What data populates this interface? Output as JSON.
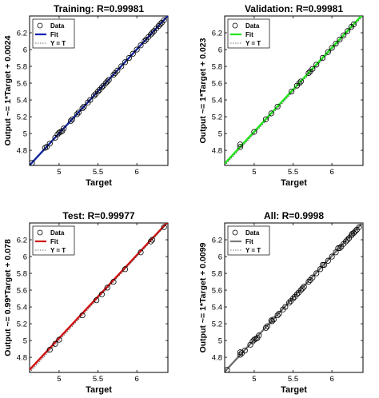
{
  "figure": {
    "background": "#ffffff"
  },
  "chart_data": [
    {
      "type": "scatter",
      "title": "Training: R=0.99981",
      "xlabel": "Target",
      "ylabel": "Output ~= 1*Target + 0.0024",
      "xlim": [
        4.62,
        6.4
      ],
      "ylim": [
        4.62,
        6.4
      ],
      "xticks": [
        "5",
        "5.5",
        "6"
      ],
      "yticks": [
        "4.8",
        "5",
        "5.2",
        "5.4",
        "5.6",
        "5.8",
        "6",
        "6.2"
      ],
      "fit_color": "#0a1fb0",
      "fit": {
        "slope": 1.0,
        "intercept": 0.0024
      },
      "legend": {
        "placement": "top-left",
        "entries": [
          "Data",
          "Fit",
          "Y = T"
        ]
      },
      "points": [
        [
          4.65,
          4.65
        ],
        [
          4.82,
          4.83
        ],
        [
          4.84,
          4.84
        ],
        [
          4.88,
          4.88
        ],
        [
          4.95,
          4.95
        ],
        [
          4.98,
          4.99
        ],
        [
          5.0,
          5.01
        ],
        [
          5.02,
          5.02
        ],
        [
          5.04,
          5.03
        ],
        [
          5.06,
          5.06
        ],
        [
          5.15,
          5.15
        ],
        [
          5.17,
          5.17
        ],
        [
          5.23,
          5.23
        ],
        [
          5.25,
          5.25
        ],
        [
          5.3,
          5.3
        ],
        [
          5.32,
          5.32
        ],
        [
          5.37,
          5.37
        ],
        [
          5.4,
          5.4
        ],
        [
          5.45,
          5.45
        ],
        [
          5.47,
          5.47
        ],
        [
          5.5,
          5.5
        ],
        [
          5.52,
          5.52
        ],
        [
          5.55,
          5.55
        ],
        [
          5.57,
          5.57
        ],
        [
          5.6,
          5.6
        ],
        [
          5.62,
          5.62
        ],
        [
          5.64,
          5.64
        ],
        [
          5.7,
          5.7
        ],
        [
          5.72,
          5.72
        ],
        [
          5.75,
          5.75
        ],
        [
          5.8,
          5.8
        ],
        [
          5.85,
          5.85
        ],
        [
          5.9,
          5.9
        ],
        [
          5.95,
          5.95
        ],
        [
          6.0,
          6.0
        ],
        [
          6.05,
          6.05
        ],
        [
          6.1,
          6.1
        ],
        [
          6.12,
          6.12
        ],
        [
          6.15,
          6.15
        ],
        [
          6.18,
          6.18
        ],
        [
          6.2,
          6.2
        ],
        [
          6.22,
          6.22
        ],
        [
          6.25,
          6.25
        ],
        [
          6.28,
          6.28
        ],
        [
          6.3,
          6.3
        ],
        [
          6.32,
          6.32
        ],
        [
          6.35,
          6.35
        ]
      ]
    },
    {
      "type": "scatter",
      "title": "Validation: R=0.99981",
      "xlabel": "Target",
      "ylabel": "Output ~= 1*Target + 0.023",
      "xlim": [
        4.62,
        6.4
      ],
      "ylim": [
        4.62,
        6.4
      ],
      "xticks": [
        "5",
        "5.5",
        "6"
      ],
      "yticks": [
        "4.8",
        "5",
        "5.2",
        "5.4",
        "5.6",
        "5.8",
        "6",
        "6.2"
      ],
      "fit_color": "#1fe51a",
      "fit": {
        "slope": 1.0,
        "intercept": 0.023
      },
      "legend": {
        "placement": "top-left",
        "entries": [
          "Data",
          "Fit",
          "Y = T"
        ]
      },
      "points": [
        [
          4.82,
          4.84
        ],
        [
          4.82,
          4.87
        ],
        [
          5.0,
          5.02
        ],
        [
          5.15,
          5.17
        ],
        [
          5.22,
          5.24
        ],
        [
          5.3,
          5.32
        ],
        [
          5.48,
          5.5
        ],
        [
          5.55,
          5.57
        ],
        [
          5.58,
          5.6
        ],
        [
          5.6,
          5.62
        ],
        [
          5.7,
          5.72
        ],
        [
          5.72,
          5.74
        ],
        [
          5.75,
          5.77
        ],
        [
          5.8,
          5.82
        ],
        [
          5.88,
          5.9
        ],
        [
          5.95,
          5.97
        ],
        [
          6.0,
          6.02
        ],
        [
          6.05,
          6.07
        ],
        [
          6.1,
          6.12
        ],
        [
          6.15,
          6.17
        ],
        [
          6.2,
          6.22
        ],
        [
          6.25,
          6.27
        ],
        [
          6.28,
          6.3
        ]
      ]
    },
    {
      "type": "scatter",
      "title": "Test: R=0.99977",
      "xlabel": "Target",
      "ylabel": "Output ~= 0.99*Target + 0.078",
      "xlim": [
        4.62,
        6.4
      ],
      "ylim": [
        4.62,
        6.4
      ],
      "xticks": [
        "5",
        "5.5",
        "6"
      ],
      "yticks": [
        "4.8",
        "5",
        "5.2",
        "5.4",
        "5.6",
        "5.8",
        "6",
        "6.2"
      ],
      "fit_color": "#d01010",
      "fit": {
        "slope": 0.99,
        "intercept": 0.078
      },
      "legend": {
        "placement": "top-left",
        "entries": [
          "Data",
          "Fit",
          "Y = T"
        ]
      },
      "points": [
        [
          4.88,
          4.89
        ],
        [
          4.95,
          4.96
        ],
        [
          5.0,
          5.01
        ],
        [
          5.3,
          5.3
        ],
        [
          5.48,
          5.48
        ],
        [
          5.55,
          5.55
        ],
        [
          5.62,
          5.63
        ],
        [
          5.7,
          5.7
        ],
        [
          5.85,
          5.85
        ],
        [
          6.05,
          6.05
        ],
        [
          6.18,
          6.18
        ],
        [
          6.2,
          6.2
        ],
        [
          6.35,
          6.35
        ]
      ]
    },
    {
      "type": "scatter",
      "title": "All: R=0.9998",
      "xlabel": "Target",
      "ylabel": "Output ~= 1*Target + 0.0099",
      "xlim": [
        4.62,
        6.4
      ],
      "ylim": [
        4.62,
        6.4
      ],
      "xticks": [
        "5",
        "5.5",
        "6"
      ],
      "yticks": [
        "4.8",
        "5",
        "5.2",
        "5.4",
        "5.6",
        "5.8",
        "6",
        "6.2"
      ],
      "fit_color": "#7a7a7a",
      "fit": {
        "slope": 1.0,
        "intercept": 0.0099
      },
      "legend": {
        "placement": "top-left",
        "entries": [
          "Data",
          "Fit",
          "Y = T"
        ]
      },
      "points": [
        [
          4.65,
          4.65
        ],
        [
          4.82,
          4.83
        ],
        [
          4.84,
          4.85
        ],
        [
          4.88,
          4.88
        ],
        [
          4.95,
          4.95
        ],
        [
          4.98,
          4.99
        ],
        [
          5.0,
          5.01
        ],
        [
          5.02,
          5.02
        ],
        [
          5.04,
          5.03
        ],
        [
          5.06,
          5.06
        ],
        [
          5.15,
          5.15
        ],
        [
          5.17,
          5.17
        ],
        [
          5.23,
          5.23
        ],
        [
          5.25,
          5.25
        ],
        [
          5.3,
          5.3
        ],
        [
          5.32,
          5.32
        ],
        [
          5.37,
          5.37
        ],
        [
          5.4,
          5.4
        ],
        [
          5.45,
          5.45
        ],
        [
          5.47,
          5.47
        ],
        [
          5.5,
          5.5
        ],
        [
          5.52,
          5.52
        ],
        [
          5.55,
          5.55
        ],
        [
          5.57,
          5.57
        ],
        [
          5.6,
          5.6
        ],
        [
          5.62,
          5.62
        ],
        [
          5.64,
          5.64
        ],
        [
          5.7,
          5.7
        ],
        [
          5.72,
          5.72
        ],
        [
          5.75,
          5.75
        ],
        [
          5.8,
          5.8
        ],
        [
          5.85,
          5.85
        ],
        [
          5.9,
          5.9
        ],
        [
          5.95,
          5.95
        ],
        [
          6.0,
          6.0
        ],
        [
          6.05,
          6.05
        ],
        [
          6.1,
          6.1
        ],
        [
          6.12,
          6.12
        ],
        [
          6.15,
          6.15
        ],
        [
          6.18,
          6.18
        ],
        [
          6.2,
          6.2
        ],
        [
          6.22,
          6.22
        ],
        [
          6.25,
          6.25
        ],
        [
          6.28,
          6.28
        ],
        [
          6.3,
          6.3
        ],
        [
          6.32,
          6.32
        ],
        [
          6.35,
          6.35
        ],
        [
          4.82,
          4.86
        ],
        [
          5.22,
          5.24
        ],
        [
          5.88,
          5.9
        ],
        [
          6.08,
          6.1
        ],
        [
          6.26,
          6.27
        ]
      ]
    }
  ]
}
